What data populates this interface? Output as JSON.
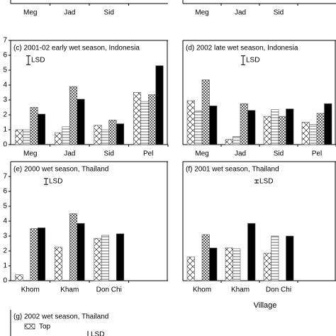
{
  "chart_data": [
    {
      "type": "bar",
      "categories": [
        "Meg",
        "Jad",
        "Sid"
      ]
    },
    {
      "type": "bar",
      "categories": [
        "Meg",
        "Jad",
        "Sid"
      ]
    },
    {
      "type": "bar",
      "title": "(c) 2001-02 early wet season, Indonesia",
      "lsd_label": "LSD",
      "lsd": 0.6,
      "categories": [
        "Meg",
        "Jad",
        "Sid",
        "Pel"
      ],
      "ylim": [
        0,
        7
      ],
      "yticks": [
        0,
        1,
        2,
        3,
        4,
        5,
        6,
        7
      ],
      "series": [
        {
          "name": "Top",
          "pattern": "cross",
          "values": [
            1.0,
            0.8,
            1.3,
            3.5
          ]
        },
        {
          "pattern": "hlines",
          "values": [
            1.0,
            1.2,
            1.0,
            2.9
          ]
        },
        {
          "pattern": "dense",
          "values": [
            2.5,
            3.9,
            1.65,
            3.35
          ]
        },
        {
          "pattern": "solid",
          "values": [
            2.05,
            3.05,
            1.4,
            5.3
          ]
        }
      ]
    },
    {
      "type": "bar",
      "title": "(d) 2002 late wet season, Indonesia",
      "lsd_label": "LSD",
      "lsd": 0.6,
      "categories": [
        "Meg",
        "Jad",
        "Sid",
        "Pel"
      ],
      "ylim": [
        0,
        7
      ],
      "series": [
        {
          "name": "Top",
          "pattern": "cross",
          "values": [
            2.95,
            0.35,
            1.9,
            1.5
          ]
        },
        {
          "pattern": "hlines",
          "values": [
            2.25,
            0.55,
            2.35,
            1.35
          ]
        },
        {
          "pattern": "dense",
          "values": [
            4.35,
            2.75,
            1.9,
            2.1
          ]
        },
        {
          "pattern": "solid",
          "values": [
            2.6,
            2.3,
            2.4,
            2.75
          ]
        }
      ]
    },
    {
      "type": "bar",
      "title": "(e) 2000 wet season, Thailand",
      "lsd_label": "LSD",
      "lsd": 0.4,
      "categories": [
        "Khom",
        "Kham",
        "Don Chi"
      ],
      "ylim": [
        0,
        8
      ],
      "yticks": [
        0,
        1,
        2,
        3,
        4,
        5,
        6,
        7
      ],
      "series": [
        {
          "name": "Top",
          "pattern": "cross",
          "values": [
            0.4,
            2.25,
            2.85
          ]
        },
        {
          "pattern": "hlines",
          "values": [
            null,
            null,
            3.05
          ]
        },
        {
          "pattern": "dense",
          "values": [
            3.5,
            4.5,
            null
          ]
        },
        {
          "pattern": "solid",
          "values": [
            3.55,
            3.85,
            3.15
          ]
        }
      ]
    },
    {
      "type": "bar",
      "title": "(f) 2001 wet season, Thailand",
      "lsd_label": "LSD",
      "lsd": 0.2,
      "categories": [
        "Khom",
        "Kham",
        "Don Chi"
      ],
      "ylim": [
        0,
        8
      ],
      "xlabel": "Village",
      "series": [
        {
          "name": "Top",
          "pattern": "cross",
          "values": [
            1.6,
            2.2,
            1.85
          ]
        },
        {
          "pattern": "hlines",
          "values": [
            null,
            2.15,
            3.0
          ]
        },
        {
          "pattern": "dense",
          "values": [
            3.1,
            null,
            null
          ]
        },
        {
          "pattern": "solid",
          "values": [
            2.2,
            3.85,
            3.0
          ]
        }
      ]
    },
    {
      "type": "legend",
      "title": "(g) 2002 wet season, Thailand",
      "lsd_label": "LSD",
      "series": [
        {
          "name": "Top",
          "pattern": "cross"
        }
      ]
    }
  ]
}
